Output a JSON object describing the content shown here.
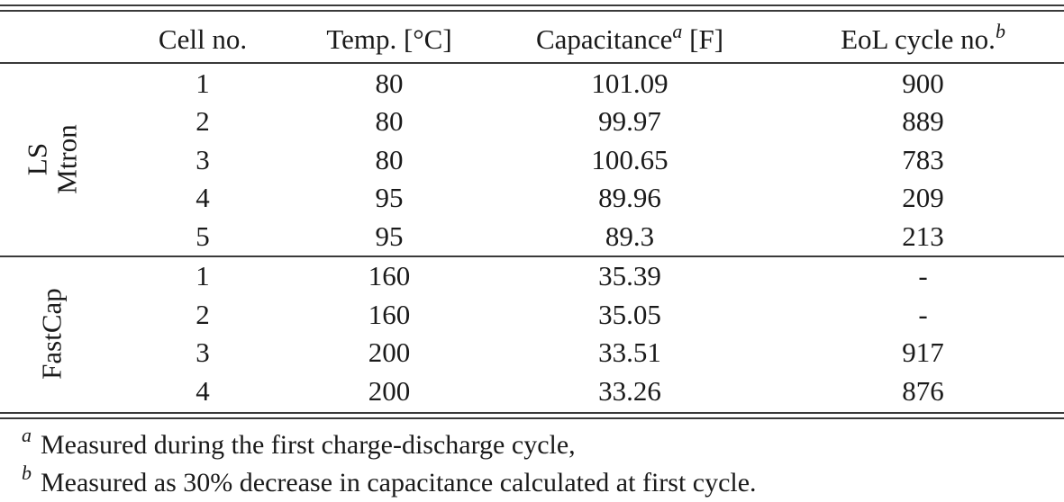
{
  "table": {
    "headers": {
      "cell_no": "Cell no.",
      "temp": "Temp. [°C]",
      "capacitance": "Capacitance",
      "capacitance_mark": "a",
      "capacitance_unit": "[F]",
      "eol": "EoL cycle no.",
      "eol_mark": "b"
    },
    "groups": [
      {
        "label_line1": "LS",
        "label_line2": "Mtron",
        "rows": [
          {
            "cell": "1",
            "temp": "80",
            "capacitance": "101.09",
            "eol": "900"
          },
          {
            "cell": "2",
            "temp": "80",
            "capacitance": "99.97",
            "eol": "889"
          },
          {
            "cell": "3",
            "temp": "80",
            "capacitance": "100.65",
            "eol": "783"
          },
          {
            "cell": "4",
            "temp": "95",
            "capacitance": "89.96",
            "eol": "209"
          },
          {
            "cell": "5",
            "temp": "95",
            "capacitance": "89.3",
            "eol": "213"
          }
        ]
      },
      {
        "label_line1": "FastCap",
        "rows": [
          {
            "cell": "1",
            "temp": "160",
            "capacitance": "35.39",
            "eol": "-"
          },
          {
            "cell": "2",
            "temp": "160",
            "capacitance": "35.05",
            "eol": "-"
          },
          {
            "cell": "3",
            "temp": "200",
            "capacitance": "33.51",
            "eol": "917"
          },
          {
            "cell": "4",
            "temp": "200",
            "capacitance": "33.26",
            "eol": "876"
          }
        ]
      }
    ]
  },
  "footnotes": [
    {
      "mark": "a",
      "text": "Measured during the first charge-discharge cycle,"
    },
    {
      "mark": "b",
      "text": "Measured as 30% decrease in capacitance calculated at first cycle."
    }
  ]
}
